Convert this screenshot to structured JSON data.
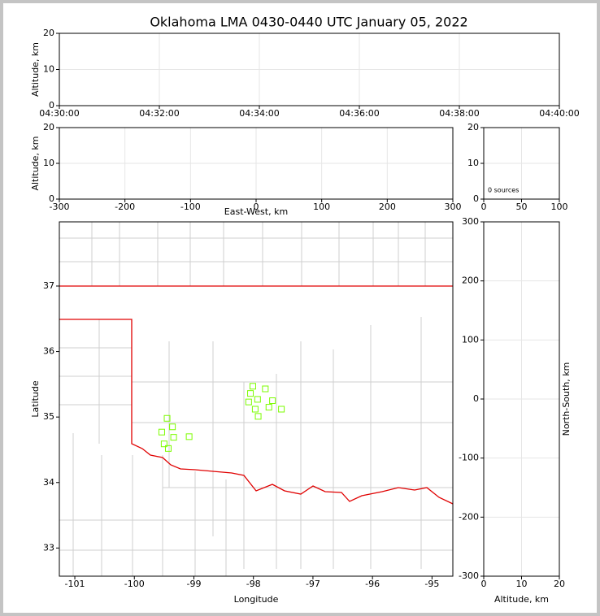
{
  "chart_data": [
    {
      "type": "scatter",
      "title": "Oklahoma LMA 0430-0440 UTC January 05, 2022",
      "ylabel": "Altitude, km",
      "xticks": [
        "04:30:00",
        "04:32:00",
        "04:34:00",
        "04:36:00",
        "04:38:00",
        "04:40:00"
      ],
      "ylim": [
        0,
        20
      ],
      "yticks": [
        0,
        10,
        20
      ],
      "grid": true
    },
    {
      "type": "scatter",
      "xlabel": "East-West, km",
      "ylabel": "Altitude, km",
      "xlim": [
        -300,
        300
      ],
      "xticks": [
        -300,
        -200,
        -100,
        0,
        100,
        200,
        300
      ],
      "ylim": [
        0,
        20
      ],
      "yticks": [
        0,
        10,
        20
      ],
      "grid": true
    },
    {
      "type": "scatter",
      "annotation": "0 sources",
      "xlim": [
        0,
        100
      ],
      "xticks": [
        0,
        50,
        100
      ],
      "ylim": [
        0,
        20
      ],
      "yticks": [
        0,
        10,
        20
      ],
      "grid": true
    },
    {
      "type": "scatter",
      "xlabel": "Longitude",
      "ylabel": "Latitude",
      "xlim": [
        -101.26,
        -94.65
      ],
      "xticks": [
        -101,
        -100,
        -99,
        -98,
        -97,
        -96,
        -95
      ],
      "ylim": [
        32.57,
        37.98
      ],
      "yticks": [
        33,
        34,
        35,
        36,
        37
      ],
      "grid": false,
      "color": "#7cfc00",
      "x": [
        -98.01,
        -97.8,
        -98.05,
        -97.93,
        -97.68,
        -98.08,
        -97.97,
        -97.74,
        -97.53,
        -97.92,
        -99.45,
        -99.36,
        -99.54,
        -99.34,
        -99.08,
        -99.5,
        -99.43
      ],
      "y": [
        35.47,
        35.43,
        35.36,
        35.27,
        35.25,
        35.23,
        35.12,
        35.15,
        35.12,
        35.01,
        34.98,
        34.85,
        34.77,
        34.69,
        34.7,
        34.59,
        34.52
      ]
    },
    {
      "type": "scatter",
      "xlabel": "Altitude, km",
      "ylabel": "North-South, km",
      "xlim": [
        0,
        20
      ],
      "xticks": [
        0,
        10,
        20
      ],
      "ylim": [
        -300,
        300
      ],
      "yticks": [
        -300,
        -200,
        -100,
        0,
        100,
        200,
        300
      ],
      "grid": true
    }
  ]
}
